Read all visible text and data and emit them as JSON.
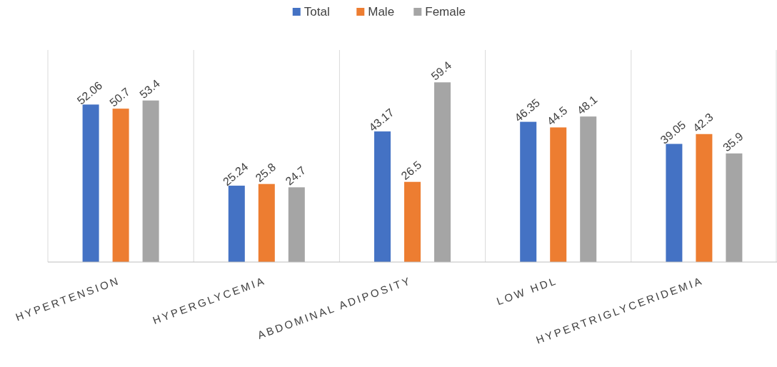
{
  "chart_data": {
    "type": "bar",
    "categories": [
      "HYPERTENSION",
      "HYPERGLYCEMIA",
      "ABDOMINAL ADIPOSITY",
      "LOW HDL",
      "HYPERTRIGLYCERIDEMIA"
    ],
    "series": [
      {
        "name": "Total",
        "color": "#4472c4",
        "values": [
          52.06,
          25.24,
          43.17,
          46.35,
          39.05
        ]
      },
      {
        "name": "Male",
        "color": "#ed7d31",
        "values": [
          50.7,
          25.8,
          26.5,
          44.5,
          42.3
        ]
      },
      {
        "name": "Female",
        "color": "#a5a5a5",
        "values": [
          53.4,
          24.7,
          59.4,
          48.1,
          35.9
        ]
      }
    ],
    "data_labels": true,
    "grid": "x",
    "legend": "top"
  }
}
